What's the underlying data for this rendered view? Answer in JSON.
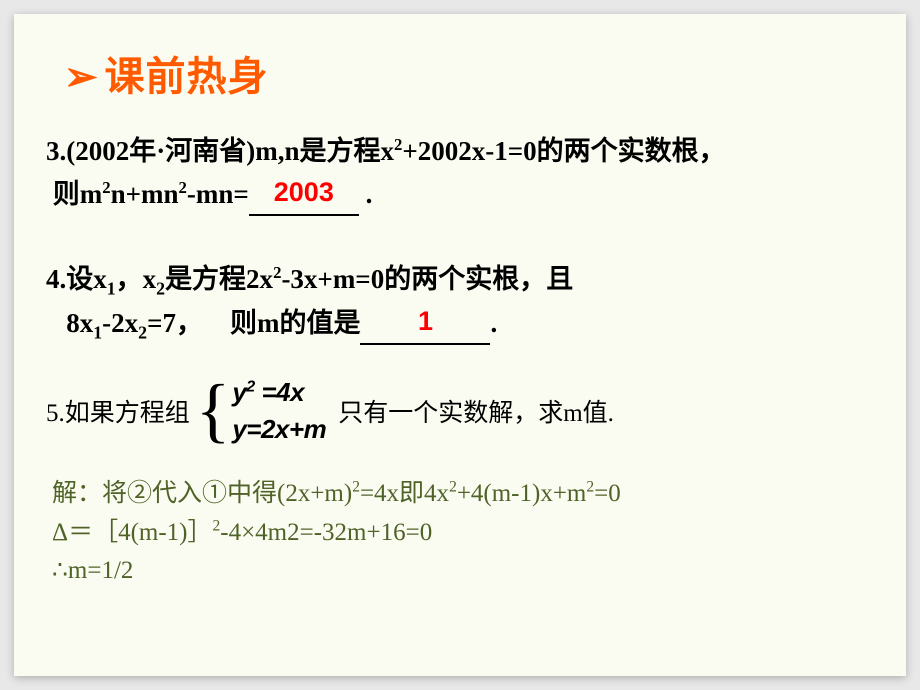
{
  "heading": {
    "bullet": "➢",
    "text": "课前热身"
  },
  "q3": {
    "line1_a": "3.(2002年·河南省)m,n是方程x",
    "line1_b": "+2002x-1=0的两个实数根，",
    "line2_a": "则m",
    "line2_b": "n+mn",
    "line2_c": "-mn=",
    "answer": "2003",
    "tail": " ."
  },
  "q4": {
    "line1_a": "4.设x",
    "line1_b": "，x",
    "line1_c": "是方程2x",
    "line1_d": "-3x+m=0的两个实根，且",
    "line2_a": "8x",
    "line2_b": "-2x",
    "line2_c": "=7，",
    "line2_d": "则m的值是",
    "answer": "1",
    "tail": "."
  },
  "q5": {
    "pre": "5.如果方程组",
    "eq1_a": "y",
    "eq1_b": "=4x",
    "eq2": "y=2x+m",
    "post": " 只有一个实数解，求m值."
  },
  "solution": {
    "l1_a": "解：将②代入①中得(2x+m)",
    "l1_b": "=4x即4x",
    "l1_c": "+4(m-1)x+m",
    "l1_d": "=0",
    "l2_a": "Δ＝［4(m-1)］",
    "l2_b": "-4×4m2=-32m+16=0",
    "l3": "∴m=1/2"
  },
  "colors": {
    "bg": "#e8e8e8",
    "slide_bg": "#fbfcf1",
    "heading": "#ff5a00",
    "body": "#000000",
    "answer": "#ff0000",
    "solution": "#4f6228"
  }
}
